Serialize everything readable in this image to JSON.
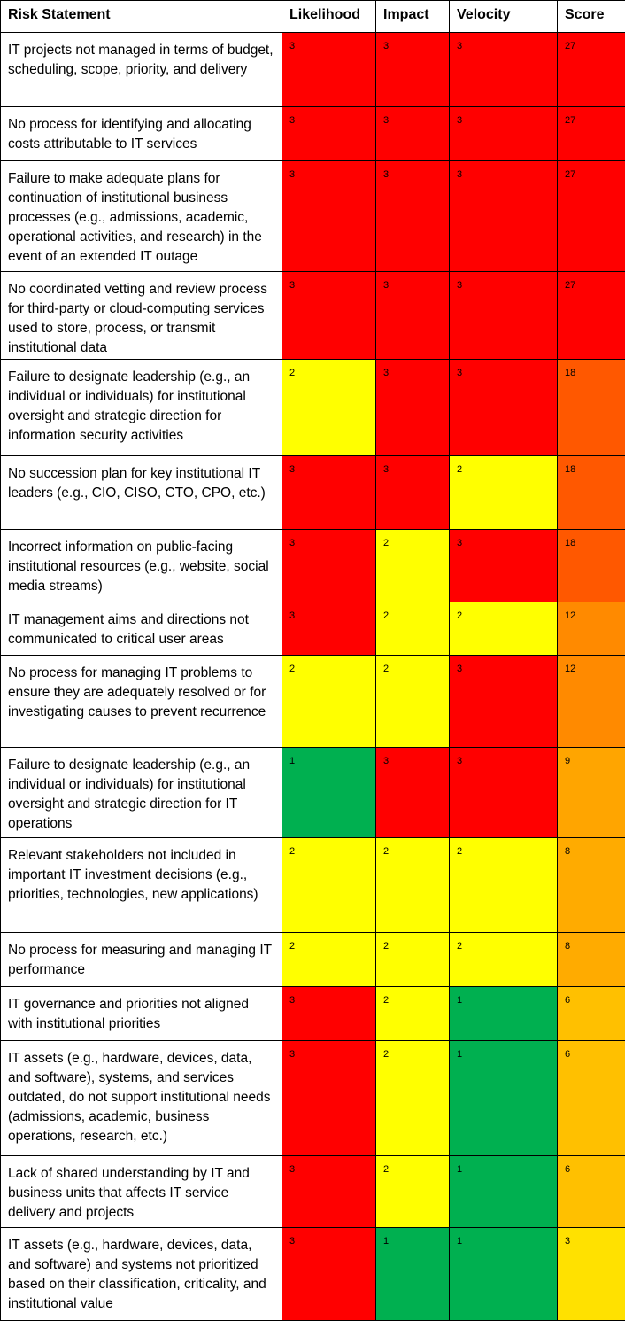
{
  "table": {
    "headers": [
      "Risk Statement",
      "Likelihood",
      "Impact",
      "Velocity",
      "Score"
    ],
    "rows": [
      [
        "IT projects not managed in terms of budget, scheduling, scope, priority, and delivery",
        3,
        3,
        3,
        27
      ],
      [
        "No process for identifying and allocating costs attributable to IT services",
        3,
        3,
        3,
        27
      ],
      [
        "Failure to make adequate plans for continuation of institutional business processes (e.g., admissions, academic, operational activities, and research) in the event of an extended IT outage",
        3,
        3,
        3,
        27
      ],
      [
        "No coordinated vetting and review process for third-party or cloud-computing services used to store, process, or transmit institutional data",
        3,
        3,
        3,
        27
      ],
      [
        "Failure to designate leadership (e.g., an individual or individuals) for institutional oversight and strategic direction for information security activities",
        2,
        3,
        3,
        18
      ],
      [
        "No succession plan for key institutional IT leaders (e.g., CIO, CISO, CTO, CPO, etc.)",
        3,
        3,
        2,
        18
      ],
      [
        "Incorrect information on public-facing institutional resources (e.g., website, social media streams)",
        3,
        2,
        3,
        18
      ],
      [
        "IT management aims and directions not communicated to critical user areas",
        3,
        2,
        2,
        12
      ],
      [
        "No process for managing IT problems to ensure they are adequately resolved or for investigating causes to prevent recurrence",
        2,
        2,
        3,
        12
      ],
      [
        "Failure to designate leadership (e.g., an individual or individuals) for institutional oversight and strategic direction for IT operations",
        1,
        3,
        3,
        9
      ],
      [
        "Relevant stakeholders not included in important IT investment decisions (e.g., priorities, technologies, new applications)",
        2,
        2,
        2,
        8
      ],
      [
        "No process for measuring and managing IT performance",
        2,
        2,
        2,
        8
      ],
      [
        "IT governance and priorities not aligned with institutional priorities",
        3,
        2,
        1,
        6
      ],
      [
        "IT assets (e.g., hardware, devices, data, and software), systems, and services outdated, do not support institutional needs (admissions, academic, business operations, research, etc.)",
        3,
        2,
        1,
        6
      ],
      [
        "Lack of shared understanding by IT and business units that affects IT service delivery and projects",
        3,
        2,
        1,
        6
      ],
      [
        "IT assets (e.g., hardware, devices, data, and software) and systems not prioritized based on their classification, criticality, and institutional value",
        3,
        1,
        1,
        3
      ]
    ],
    "level_colors": {
      "1": "#00b050",
      "2": "#ffff00",
      "3": "#ff0000"
    },
    "score_colors": {
      "27": "#ff0000",
      "18": "#ff5800",
      "12": "#ff8a00",
      "9": "#ffa500",
      "8": "#ffab00",
      "6": "#ffc000",
      "3": "#ffe100"
    }
  }
}
